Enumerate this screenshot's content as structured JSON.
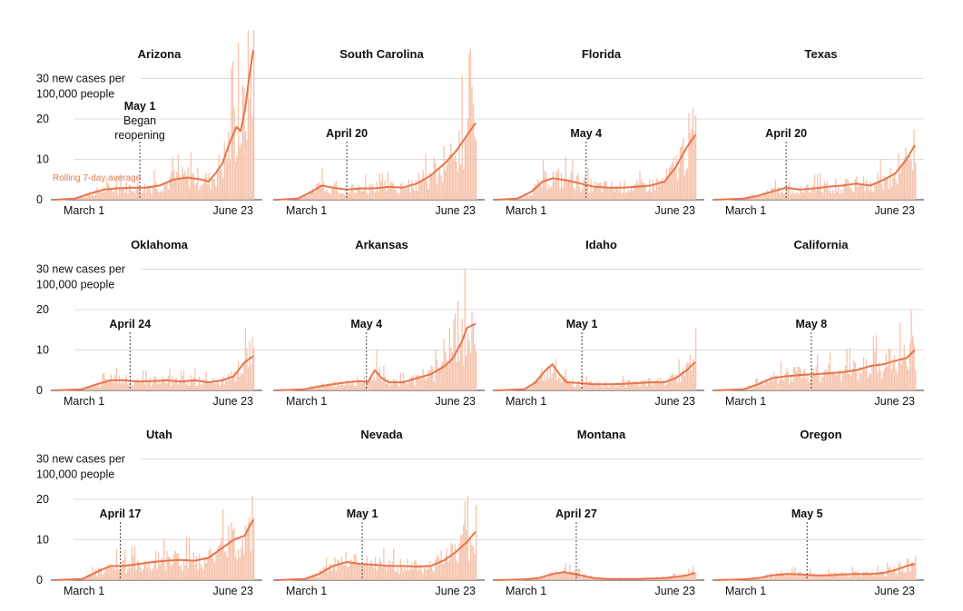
{
  "chart_data": {
    "type": "bar",
    "common": {
      "y_label_line1": "30 new cases per",
      "y_label_line2": "100,000 people",
      "y_ticks": [
        0,
        10,
        20
      ],
      "ylim": [
        0,
        30
      ],
      "x_start_label": "March 1",
      "x_end_label": "June 23",
      "average_label": "Rolling 7-day average",
      "reopen_note_line1": "Began",
      "reopen_note_line2": "reopening",
      "bar_color": "#f6c3ac",
      "line_color": "#e8744a"
    },
    "panels": [
      {
        "state": "Arizona",
        "reopen": "May 1",
        "avg": [
          [
            0,
            0
          ],
          [
            15,
            0.3
          ],
          [
            25,
            1.5
          ],
          [
            35,
            2.5
          ],
          [
            45,
            2.8
          ],
          [
            55,
            3
          ],
          [
            65,
            3
          ],
          [
            75,
            3.5
          ],
          [
            85,
            5
          ],
          [
            95,
            5.5
          ],
          [
            105,
            5
          ],
          [
            110,
            4.5
          ],
          [
            115,
            6.5
          ],
          [
            120,
            9
          ],
          [
            125,
            14
          ],
          [
            130,
            18
          ],
          [
            133,
            17
          ],
          [
            136,
            22
          ],
          [
            139,
            30
          ],
          [
            142,
            37
          ]
        ]
      },
      {
        "state": "South Carolina",
        "reopen": "April 20",
        "avg": [
          [
            0,
            0
          ],
          [
            15,
            0.3
          ],
          [
            25,
            2
          ],
          [
            32,
            3.5
          ],
          [
            40,
            3
          ],
          [
            50,
            2.5
          ],
          [
            60,
            2.8
          ],
          [
            70,
            2.8
          ],
          [
            80,
            3.2
          ],
          [
            90,
            3
          ],
          [
            100,
            4
          ],
          [
            110,
            6
          ],
          [
            120,
            9
          ],
          [
            128,
            12
          ],
          [
            136,
            16
          ],
          [
            142,
            19
          ]
        ]
      },
      {
        "state": "Florida",
        "reopen": "May 4",
        "avg": [
          [
            0,
            0
          ],
          [
            15,
            0.3
          ],
          [
            25,
            2
          ],
          [
            33,
            4.5
          ],
          [
            40,
            5.3
          ],
          [
            50,
            4.8
          ],
          [
            60,
            4
          ],
          [
            70,
            3.2
          ],
          [
            80,
            3
          ],
          [
            90,
            3
          ],
          [
            100,
            3.2
          ],
          [
            110,
            3.5
          ],
          [
            120,
            4.5
          ],
          [
            128,
            8
          ],
          [
            136,
            13
          ],
          [
            142,
            16
          ]
        ]
      },
      {
        "state": "Texas",
        "reopen": "April 20",
        "avg": [
          [
            0,
            0
          ],
          [
            20,
            0.3
          ],
          [
            30,
            1
          ],
          [
            40,
            2
          ],
          [
            50,
            3
          ],
          [
            60,
            2.5
          ],
          [
            70,
            2.8
          ],
          [
            80,
            3.2
          ],
          [
            90,
            3.5
          ],
          [
            100,
            4
          ],
          [
            110,
            3.5
          ],
          [
            120,
            5
          ],
          [
            128,
            6.5
          ],
          [
            136,
            10
          ],
          [
            142,
            13.5
          ]
        ]
      },
      {
        "state": "Oklahoma",
        "reopen": "April 24",
        "avg": [
          [
            0,
            0
          ],
          [
            20,
            0.3
          ],
          [
            30,
            1.5
          ],
          [
            40,
            2.5
          ],
          [
            50,
            2.5
          ],
          [
            60,
            2.2
          ],
          [
            70,
            2.3
          ],
          [
            80,
            2.5
          ],
          [
            90,
            2.2
          ],
          [
            100,
            2.5
          ],
          [
            110,
            2
          ],
          [
            120,
            2.5
          ],
          [
            128,
            3.5
          ],
          [
            136,
            7
          ],
          [
            142,
            8.5
          ]
        ]
      },
      {
        "state": "Arkansas",
        "reopen": "May 4",
        "avg": [
          [
            0,
            0
          ],
          [
            20,
            0.3
          ],
          [
            30,
            1
          ],
          [
            40,
            1.5
          ],
          [
            50,
            2
          ],
          [
            60,
            2.3
          ],
          [
            65,
            2
          ],
          [
            70,
            5
          ],
          [
            75,
            3
          ],
          [
            80,
            2
          ],
          [
            90,
            2
          ],
          [
            100,
            3
          ],
          [
            110,
            4
          ],
          [
            120,
            6
          ],
          [
            126,
            8
          ],
          [
            132,
            12
          ],
          [
            136,
            15.5
          ],
          [
            142,
            16.5
          ]
        ]
      },
      {
        "state": "Idaho",
        "reopen": "May 1",
        "avg": [
          [
            0,
            0
          ],
          [
            20,
            0.3
          ],
          [
            28,
            2
          ],
          [
            35,
            5
          ],
          [
            40,
            6.5
          ],
          [
            45,
            4
          ],
          [
            50,
            2
          ],
          [
            60,
            1.8
          ],
          [
            70,
            1.5
          ],
          [
            80,
            1.5
          ],
          [
            90,
            1.6
          ],
          [
            100,
            1.8
          ],
          [
            110,
            2
          ],
          [
            120,
            2
          ],
          [
            128,
            3
          ],
          [
            136,
            5
          ],
          [
            142,
            7
          ]
        ]
      },
      {
        "state": "California",
        "reopen": "May 8",
        "avg": [
          [
            0,
            0
          ],
          [
            20,
            0.3
          ],
          [
            30,
            1.5
          ],
          [
            40,
            3
          ],
          [
            50,
            3.5
          ],
          [
            60,
            3.8
          ],
          [
            70,
            4
          ],
          [
            80,
            4.2
          ],
          [
            90,
            4.5
          ],
          [
            100,
            5
          ],
          [
            110,
            6
          ],
          [
            120,
            6.5
          ],
          [
            130,
            7.5
          ],
          [
            136,
            8
          ],
          [
            142,
            10
          ]
        ]
      },
      {
        "state": "Utah",
        "reopen": "April 17",
        "avg": [
          [
            0,
            0
          ],
          [
            20,
            0.3
          ],
          [
            30,
            2
          ],
          [
            40,
            3.5
          ],
          [
            50,
            3.5
          ],
          [
            60,
            4
          ],
          [
            70,
            4.5
          ],
          [
            80,
            4.8
          ],
          [
            90,
            5
          ],
          [
            100,
            4.8
          ],
          [
            110,
            5.5
          ],
          [
            120,
            8
          ],
          [
            128,
            10
          ],
          [
            136,
            11
          ],
          [
            142,
            15
          ]
        ]
      },
      {
        "state": "Nevada",
        "reopen": "May 1",
        "avg": [
          [
            0,
            0
          ],
          [
            20,
            0.3
          ],
          [
            30,
            1.5
          ],
          [
            40,
            3.5
          ],
          [
            50,
            4.5
          ],
          [
            60,
            4
          ],
          [
            70,
            3.8
          ],
          [
            80,
            3.5
          ],
          [
            90,
            3.5
          ],
          [
            100,
            3.3
          ],
          [
            110,
            3.5
          ],
          [
            120,
            5
          ],
          [
            128,
            7
          ],
          [
            136,
            9.5
          ],
          [
            142,
            12
          ]
        ]
      },
      {
        "state": "Montana",
        "reopen": "April 27",
        "avg": [
          [
            0,
            0
          ],
          [
            20,
            0.2
          ],
          [
            30,
            0.5
          ],
          [
            40,
            1.5
          ],
          [
            48,
            2
          ],
          [
            60,
            1.2
          ],
          [
            70,
            0.5
          ],
          [
            80,
            0.3
          ],
          [
            90,
            0.3
          ],
          [
            100,
            0.3
          ],
          [
            110,
            0.4
          ],
          [
            120,
            0.5
          ],
          [
            128,
            0.8
          ],
          [
            136,
            1.2
          ],
          [
            142,
            1.8
          ]
        ]
      },
      {
        "state": "Oregon",
        "reopen": "May 5",
        "avg": [
          [
            0,
            0
          ],
          [
            20,
            0.2
          ],
          [
            30,
            0.5
          ],
          [
            40,
            1.2
          ],
          [
            50,
            1.5
          ],
          [
            60,
            1.4
          ],
          [
            70,
            1.2
          ],
          [
            80,
            1.2
          ],
          [
            90,
            1.4
          ],
          [
            100,
            1.5
          ],
          [
            110,
            1.5
          ],
          [
            120,
            1.8
          ],
          [
            128,
            2.5
          ],
          [
            136,
            3.5
          ],
          [
            142,
            4
          ]
        ]
      }
    ]
  }
}
